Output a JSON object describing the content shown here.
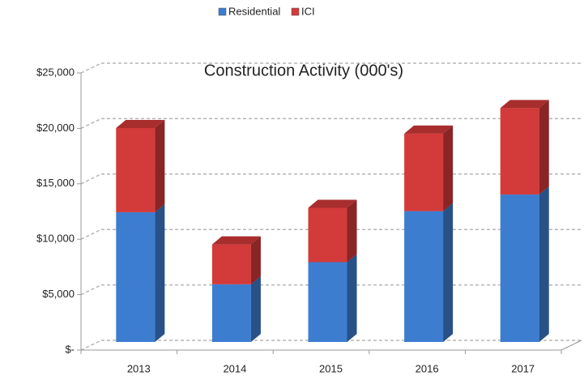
{
  "chart_data": {
    "type": "bar",
    "stacked": true,
    "title": "Construction Activity (000's)",
    "categories": [
      "2013",
      "2014",
      "2015",
      "2016",
      "2017"
    ],
    "series": [
      {
        "name": "Residential",
        "color": "#3d7dd0",
        "values": [
          11700,
          5200,
          7200,
          11800,
          13300
        ]
      },
      {
        "name": "ICI",
        "color": "#d33a3a",
        "values": [
          7600,
          3600,
          4900,
          7000,
          7800
        ]
      }
    ],
    "ylim": [
      0,
      25000
    ],
    "yticks": [
      {
        "value": 0,
        "label": "$-"
      },
      {
        "value": 5000,
        "label": "$5,000"
      },
      {
        "value": 10000,
        "label": "$10,000"
      },
      {
        "value": 15000,
        "label": "$15,000"
      },
      {
        "value": 20000,
        "label": "$20,000"
      },
      {
        "value": 25000,
        "label": "$25,000"
      }
    ],
    "grid": true,
    "legend": "top"
  }
}
